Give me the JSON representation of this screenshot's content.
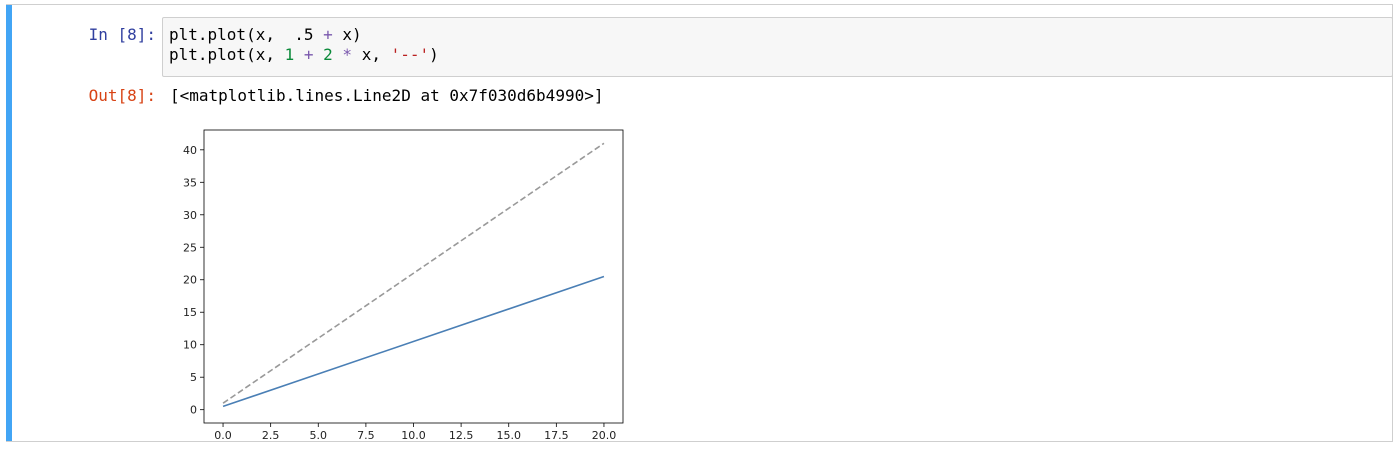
{
  "cell": {
    "in_prompt": "In [8]:",
    "out_prompt": "Out[8]:",
    "code": {
      "line1": {
        "a": "plt.plot(x,  .5 ",
        "op": "+",
        "b": " x)"
      },
      "line2": {
        "a": "plt.plot(x, ",
        "n1": "1",
        "op1": " + ",
        "n2": "2",
        "op2": " * ",
        "c": "x, ",
        "str": "'--'",
        "d": ")"
      }
    },
    "output": "[<matplotlib.lines.Line2D at 0x7f030d6b4990>]"
  },
  "colors": {
    "accent_bar": "#42a5f5",
    "series_solid": "#4a7fb5",
    "series_dashed": "#999999"
  },
  "chart_data": {
    "type": "line",
    "xlim": [
      -1,
      21
    ],
    "ylim": [
      -2.05,
      43.05
    ],
    "xticks": [
      "0.0",
      "2.5",
      "5.0",
      "7.5",
      "10.0",
      "12.5",
      "15.0",
      "17.5",
      "20.0"
    ],
    "yticks": [
      "0",
      "5",
      "10",
      "15",
      "20",
      "25",
      "30",
      "35",
      "40"
    ],
    "grid": false,
    "series": [
      {
        "style": "solid",
        "x": [
          0,
          20
        ],
        "y": [
          0.5,
          20.5
        ]
      },
      {
        "style": "dashed",
        "x": [
          0,
          20
        ],
        "y": [
          1,
          41
        ]
      }
    ]
  }
}
